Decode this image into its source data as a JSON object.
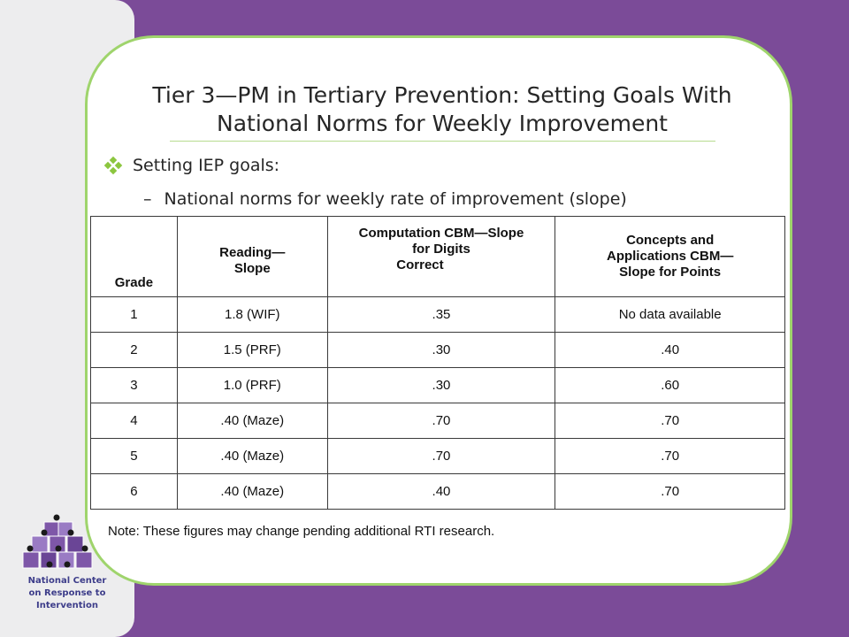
{
  "slide": {
    "title": "Tier 3—PM in Tertiary Prevention: Setting Goals With National Norms for Weekly Improvement",
    "bullet": "Setting IEP goals:",
    "sub_bullet_marker": "–",
    "sub_bullet": "National norms for weekly rate of improvement (slope)",
    "note": "Note: These figures may change pending additional RTI research."
  },
  "table": {
    "headers": {
      "grade": "Grade",
      "reading_line1": "Reading—",
      "reading_line2": "Slope",
      "computation_line1": "Computation CBM—Slope",
      "computation_line2": "for Digits",
      "computation_line3": "Correct",
      "concepts_line1": "Concepts and",
      "concepts_line2": "Applications CBM—",
      "concepts_line3": "Slope for Points"
    },
    "rows": [
      {
        "grade": "1",
        "reading": "1.8 (WIF)",
        "computation": ".35",
        "concepts": "No data available"
      },
      {
        "grade": "2",
        "reading": "1.5 (PRF)",
        "computation": ".30",
        "concepts": ".40"
      },
      {
        "grade": "3",
        "reading": "1.0 (PRF)",
        "computation": ".30",
        "concepts": ".60"
      },
      {
        "grade": "4",
        "reading": ".40 (Maze)",
        "computation": ".70",
        "concepts": ".70"
      },
      {
        "grade": "5",
        "reading": ".40 (Maze)",
        "computation": ".70",
        "concepts": ".70"
      },
      {
        "grade": "6",
        "reading": ".40 (Maze)",
        "computation": ".40",
        "concepts": ".70"
      }
    ]
  },
  "logo": {
    "icon": "cube-pyramid-logo-icon",
    "line1": "National Center",
    "line2": "on Response to",
    "line3": "Intervention"
  },
  "colors": {
    "background": "#7b4b98",
    "sidebar": "#ededee",
    "card_border": "#9fd46c",
    "bullet": "#8cc63f",
    "logo_text": "#3d3d8a"
  }
}
